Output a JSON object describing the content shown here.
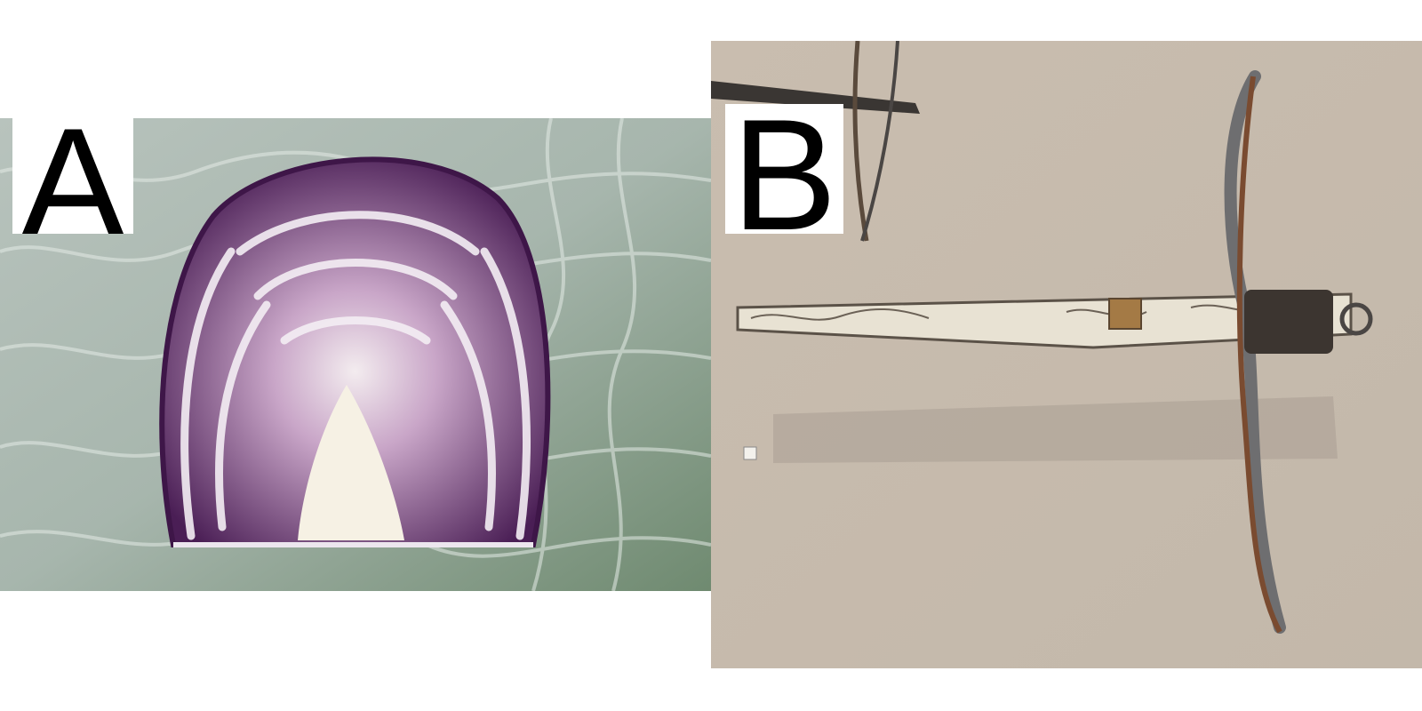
{
  "panels": [
    {
      "label": "A",
      "subject": "red-cabbage-cross-section",
      "colors": {
        "background": "#9fb0a6",
        "cabbage_purple": "#5a2a63",
        "cabbage_white": "#efeaf2"
      }
    },
    {
      "label": "B",
      "subject": "ornate-crossbow",
      "colors": {
        "wall": "#cabfb1",
        "stock_ivory": "#e7e1d2",
        "bow_steel": "#6e6e70",
        "string_brown": "#7a4b30"
      }
    }
  ]
}
